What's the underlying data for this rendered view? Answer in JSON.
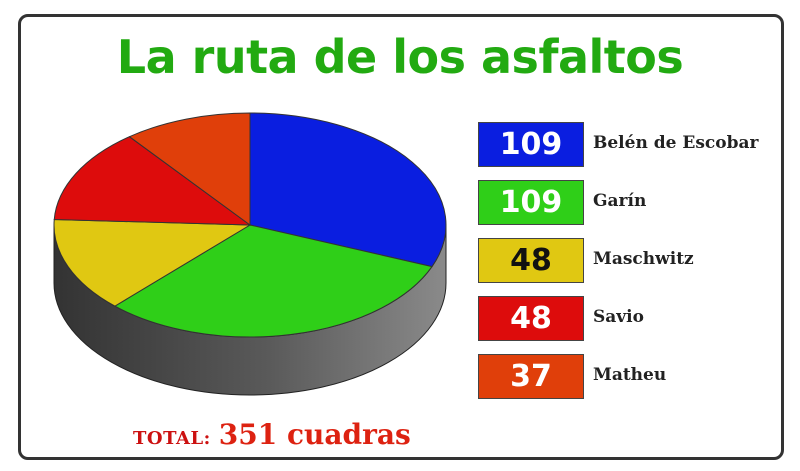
{
  "title": "La ruta de los asfaltos",
  "colors": {
    "title": "#22aa11",
    "total_label": "#cc1111",
    "total_value": "#dd2211",
    "side_dark": "#333333",
    "side_light": "#8a8a8a"
  },
  "chart_data": {
    "type": "pie",
    "title": "La ruta de los asfaltos",
    "slices": [
      {
        "label": "Belén de Escobar",
        "value": 109,
        "color": "#0a1ee0",
        "value_color": "#ffffff"
      },
      {
        "label": "Garín",
        "value": 109,
        "color": "#2fcf18",
        "value_color": "#ffffff"
      },
      {
        "label": "Maschwitz",
        "value": 48,
        "color": "#e0c812",
        "value_color": "#111111"
      },
      {
        "label": "Savio",
        "value": 48,
        "color": "#dd0c0c",
        "value_color": "#ffffff"
      },
      {
        "label": "Matheu",
        "value": 37,
        "color": "#e03f0a",
        "value_color": "#ffffff"
      }
    ],
    "legend_position": "right",
    "style": "3d"
  },
  "total": {
    "label": "TOTAL:",
    "value": "351 cuadras"
  }
}
